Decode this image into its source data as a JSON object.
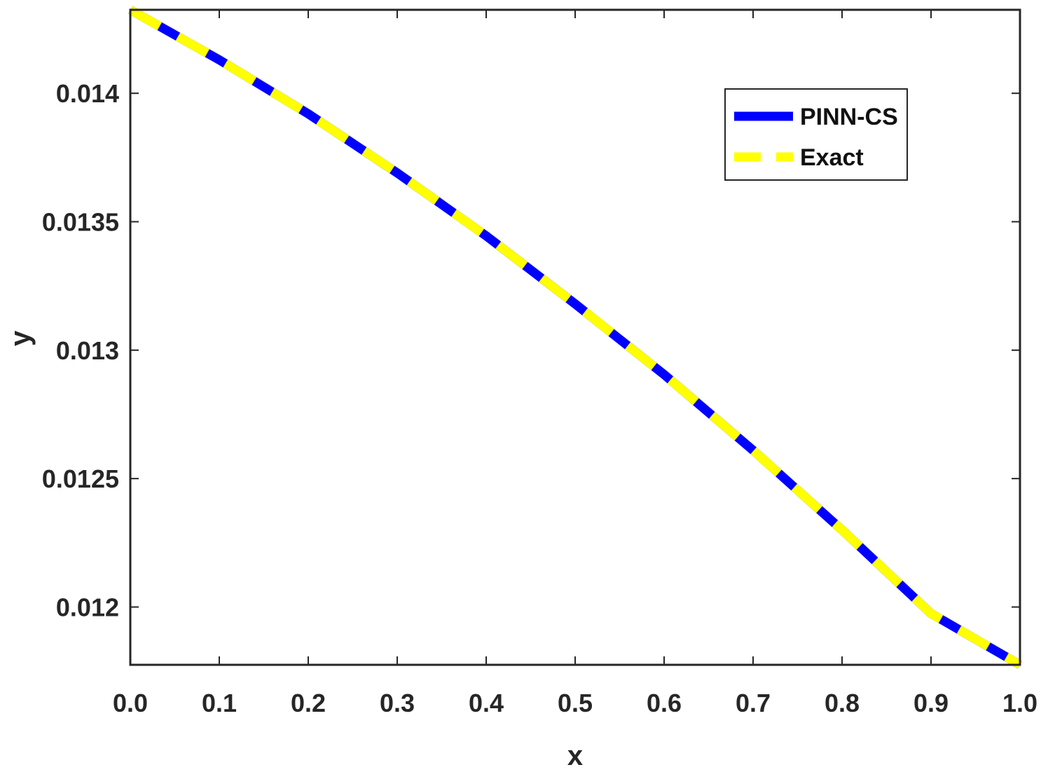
{
  "chart_data": {
    "type": "line",
    "title": "",
    "xlabel": "x",
    "ylabel": "y",
    "xlim": [
      0,
      1
    ],
    "ylim": [
      0.011775,
      0.014325
    ],
    "grid": false,
    "legend_position": "top-right",
    "x_ticks": [
      0.0,
      0.1,
      0.2,
      0.3,
      0.4,
      0.5,
      0.6,
      0.7,
      0.8,
      0.9,
      1.0
    ],
    "x_tick_labels": [
      "0.0",
      "0.1",
      "0.2",
      "0.3",
      "0.4",
      "0.5",
      "0.6",
      "0.7",
      "0.8",
      "0.9",
      "1.0"
    ],
    "y_ticks": [
      0.012,
      0.0125,
      0.013,
      0.0135,
      0.014
    ],
    "y_tick_labels": [
      "0.012",
      "0.0125",
      "0.013",
      "0.0135",
      "0.014"
    ],
    "x": [
      0.0,
      0.1,
      0.2,
      0.3,
      0.4,
      0.5,
      0.6,
      0.7,
      0.8,
      0.9,
      1.0
    ],
    "series": [
      {
        "name": "PINN-CS",
        "color": "#0000ff",
        "style": "solid",
        "values": [
          0.014325,
          0.01413,
          0.01392,
          0.01369,
          0.013445,
          0.01318,
          0.012905,
          0.01261,
          0.0123,
          0.011975,
          0.011775
        ]
      },
      {
        "name": "Exact",
        "color": "#ffff00",
        "style": "dashed",
        "values": [
          0.014325,
          0.01413,
          0.01392,
          0.01369,
          0.013445,
          0.01318,
          0.012905,
          0.01261,
          0.0123,
          0.011975,
          0.011775
        ]
      }
    ]
  }
}
